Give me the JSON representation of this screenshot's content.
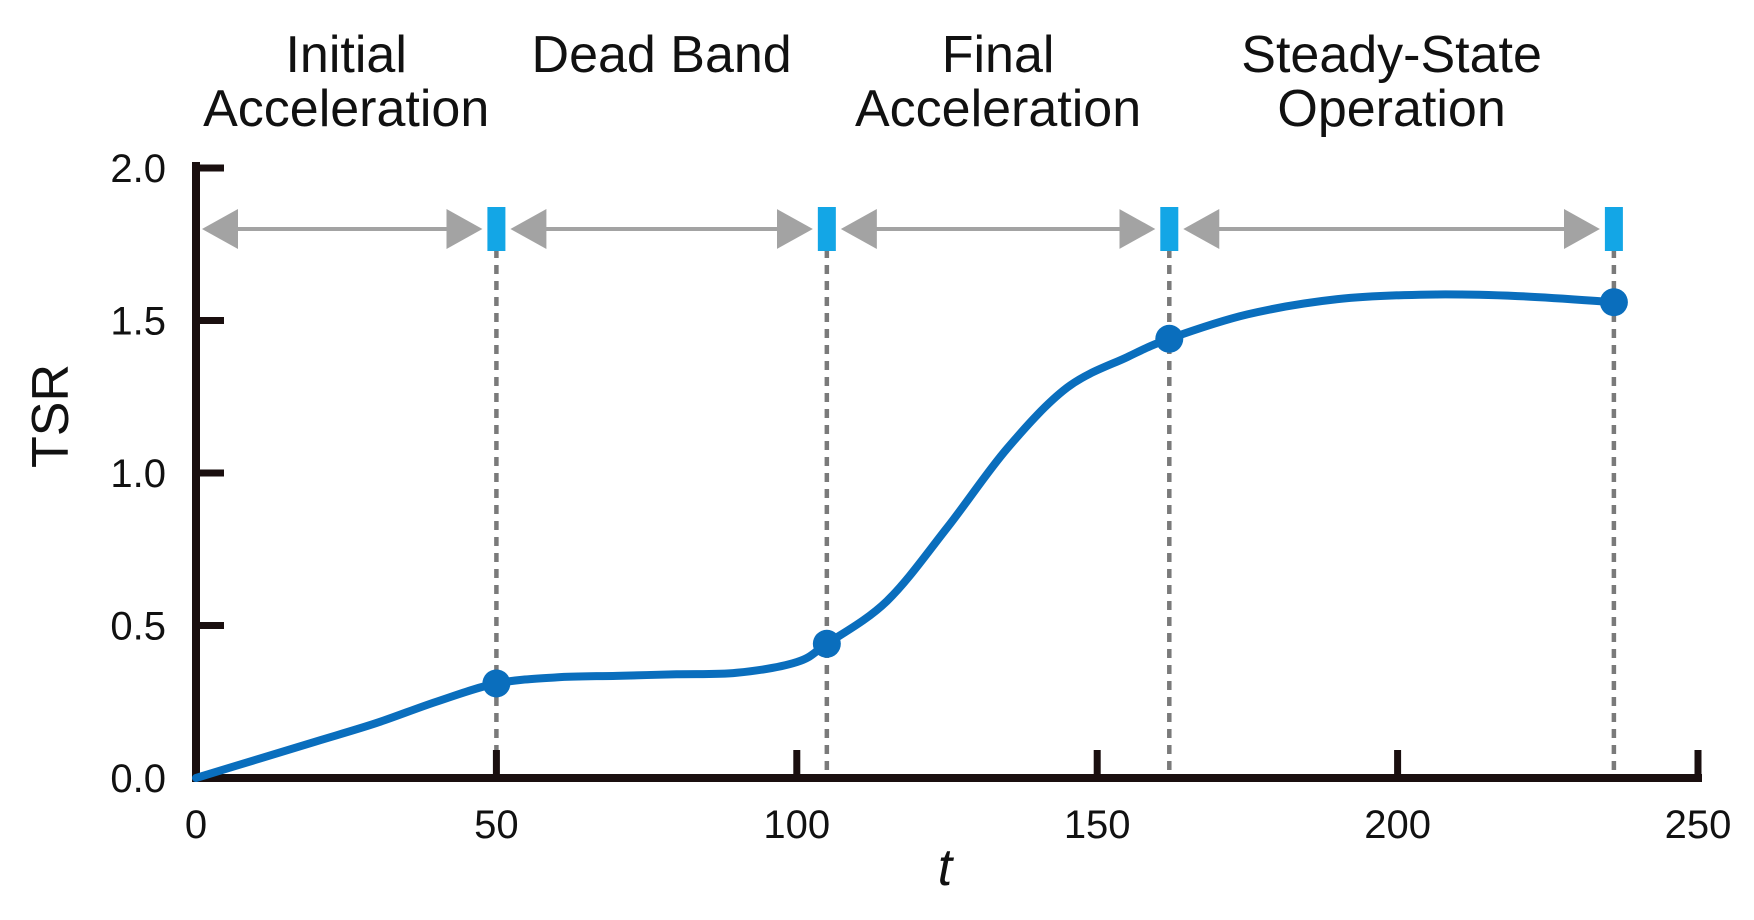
{
  "chart_data": {
    "type": "line",
    "title": "",
    "xlabel": "t",
    "ylabel": "TSR",
    "xlim": [
      0,
      250
    ],
    "ylim": [
      0,
      2.0
    ],
    "x_ticks": [
      "0",
      "50",
      "100",
      "150",
      "200",
      "250"
    ],
    "y_ticks": [
      "0.0",
      "0.5",
      "1.0",
      "1.5",
      "2.0"
    ],
    "grid": false,
    "legend": "none",
    "series": [
      {
        "color": "#0a6ebd",
        "points": [
          [
            0,
            0.0
          ],
          [
            10,
            0.06
          ],
          [
            20,
            0.12
          ],
          [
            30,
            0.18
          ],
          [
            40,
            0.25
          ],
          [
            50,
            0.31
          ],
          [
            60,
            0.33
          ],
          [
            70,
            0.335
          ],
          [
            80,
            0.34
          ],
          [
            90,
            0.345
          ],
          [
            100,
            0.38
          ],
          [
            105,
            0.44
          ],
          [
            115,
            0.58
          ],
          [
            125,
            0.82
          ],
          [
            135,
            1.08
          ],
          [
            145,
            1.28
          ],
          [
            155,
            1.38
          ],
          [
            162,
            1.44
          ],
          [
            175,
            1.52
          ],
          [
            190,
            1.57
          ],
          [
            205,
            1.585
          ],
          [
            220,
            1.58
          ],
          [
            236,
            1.56
          ]
        ],
        "markers": [
          [
            50,
            0.31
          ],
          [
            105,
            0.44
          ],
          [
            162,
            1.44
          ],
          [
            236,
            1.56
          ]
        ]
      }
    ],
    "phase_boundaries": [
      0,
      50,
      105,
      162,
      236
    ],
    "boundary_marker_color": "#13a6e6",
    "arrow_level": 1.8,
    "phases": [
      {
        "label_lines": [
          "Initial",
          "Acceleration"
        ],
        "start": 0,
        "end": 50
      },
      {
        "label_lines": [
          "Dead Band"
        ],
        "start": 50,
        "end": 105
      },
      {
        "label_lines": [
          "Final",
          "Acceleration"
        ],
        "start": 105,
        "end": 162
      },
      {
        "label_lines": [
          "Steady-State",
          "Operation"
        ],
        "start": 162,
        "end": 236
      }
    ]
  }
}
